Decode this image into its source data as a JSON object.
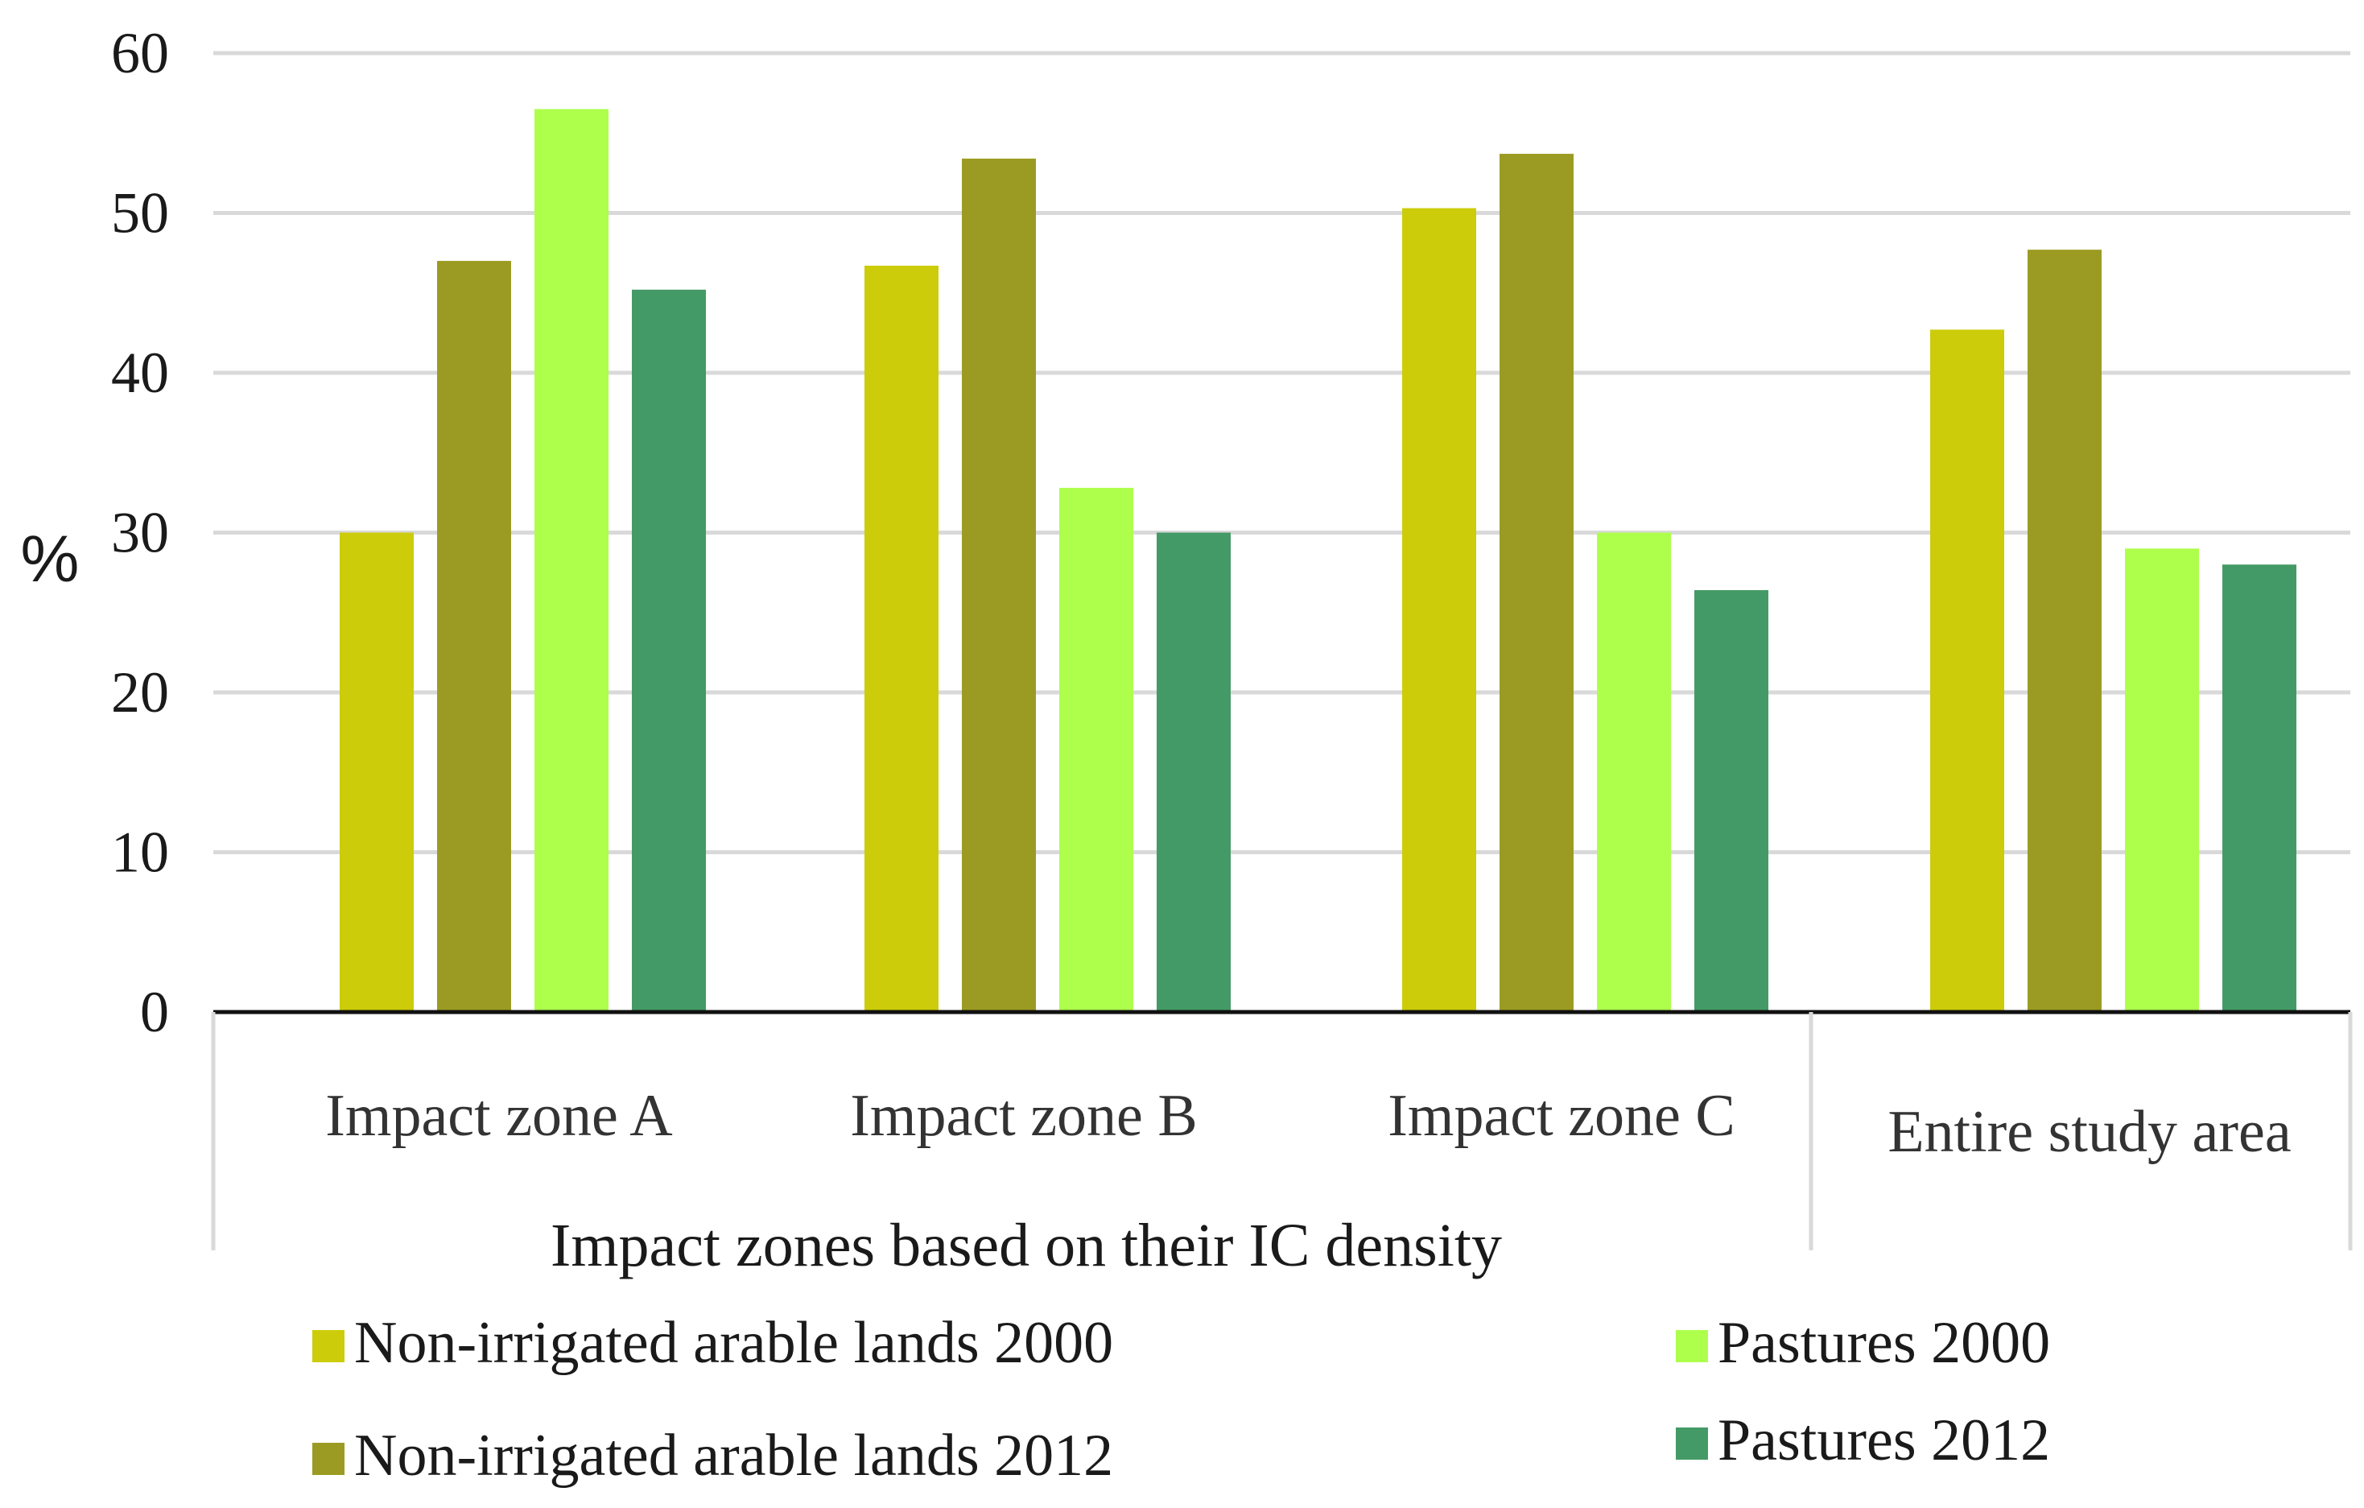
{
  "chart_data": {
    "type": "bar",
    "ylabel": "%",
    "ylim": [
      0,
      60
    ],
    "yticks": [
      0,
      10,
      20,
      30,
      40,
      50,
      60
    ],
    "grid": true,
    "categories": [
      "Impact zone A",
      "Impact zone B",
      "Impact zone C",
      "Entire study area"
    ],
    "group_label": "Impact zones based on their IC density",
    "legend_position": "bottom",
    "series": [
      {
        "name": "Non-irrigated arable lands 2000",
        "color": "#cccc0a",
        "values": [
          30.0,
          46.7,
          50.3,
          42.7
        ]
      },
      {
        "name": "Non-irrigated arable lands 2012",
        "color": "#9b9b23",
        "values": [
          47.0,
          53.4,
          53.7,
          47.7
        ]
      },
      {
        "name": "Pastures 2000",
        "color": "#adff4c",
        "values": [
          56.5,
          32.8,
          30.0,
          29.0
        ]
      },
      {
        "name": "Pastures 2012",
        "color": "#449a66",
        "values": [
          45.2,
          30.0,
          26.4,
          28.0
        ]
      }
    ]
  }
}
